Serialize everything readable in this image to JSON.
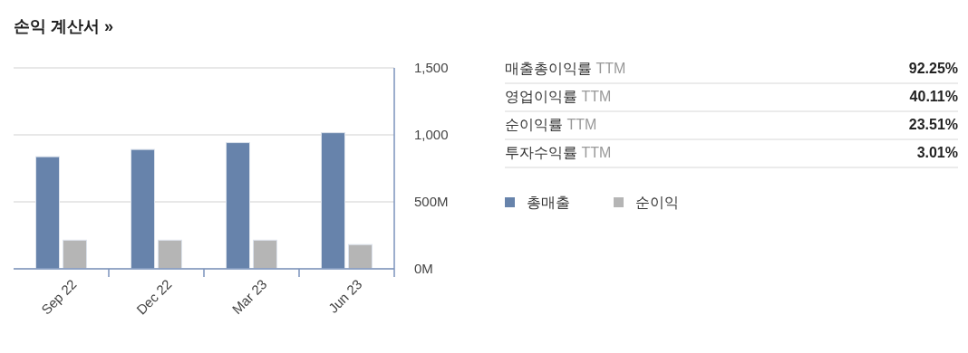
{
  "chart_data": [
    {
      "type": "bar",
      "title": "손익 계산서 »",
      "categories": [
        "Sep 22",
        "Dec 22",
        "Mar 23",
        "Jun 23"
      ],
      "series": [
        {
          "name": "총매출",
          "color": "#6783ab",
          "values": [
            837,
            891,
            942,
            1016
          ]
        },
        {
          "name": "순이익",
          "color": "#b5b5b5",
          "values": [
            214,
            214,
            214,
            181
          ]
        }
      ],
      "ylim": [
        0,
        1500
      ],
      "yticks": [
        {
          "value": 0,
          "label": "0M"
        },
        {
          "value": 500,
          "label": "500M"
        },
        {
          "value": 1000,
          "label": "1,000"
        },
        {
          "value": 1500,
          "label": "1,500"
        }
      ],
      "grid": "y",
      "legend": "right"
    },
    {
      "type": "other",
      "annotations": [
        "매출총이익률 TTM",
        "92.25%",
        "영업이익률 TTM",
        "40.11%",
        "순이익률 TTM",
        "23.51%",
        "투자수익률 TTM",
        "3.01%"
      ]
    }
  ]
}
